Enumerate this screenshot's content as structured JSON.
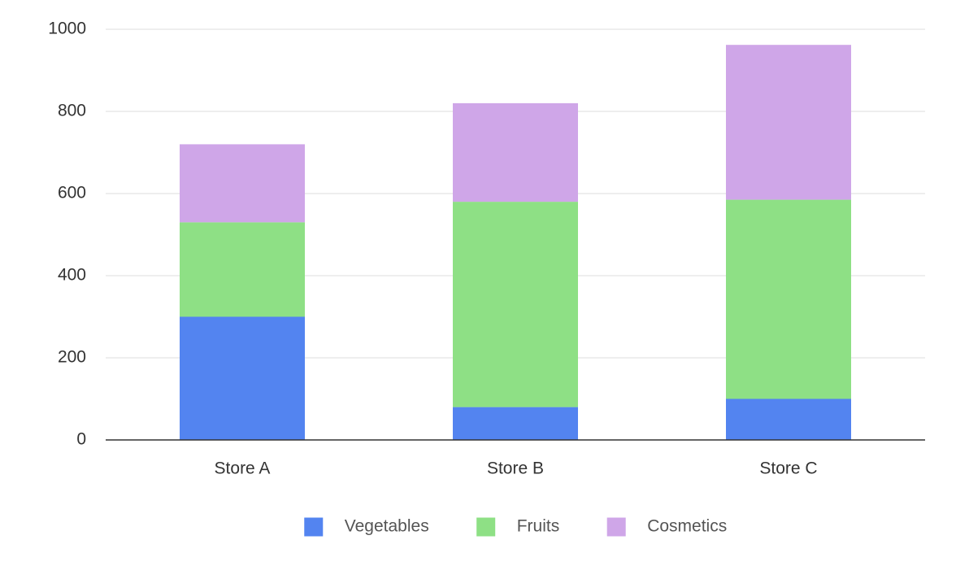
{
  "chart_data": {
    "type": "stacked_bar",
    "categories": [
      "Store A",
      "Store B",
      "Store C"
    ],
    "series": [
      {
        "name": "Vegetables",
        "color": "#5384f0",
        "values": [
          300,
          80,
          100
        ]
      },
      {
        "name": "Fruits",
        "color": "#8ee085",
        "values": [
          230,
          500,
          485
        ]
      },
      {
        "name": "Cosmetics",
        "color": "#cfa6e8",
        "values": [
          190,
          240,
          377
        ]
      }
    ],
    "ylim": [
      0,
      1000
    ],
    "yticks": [
      0,
      200,
      400,
      600,
      800,
      1000
    ],
    "grid": true,
    "legend": "bottom"
  }
}
